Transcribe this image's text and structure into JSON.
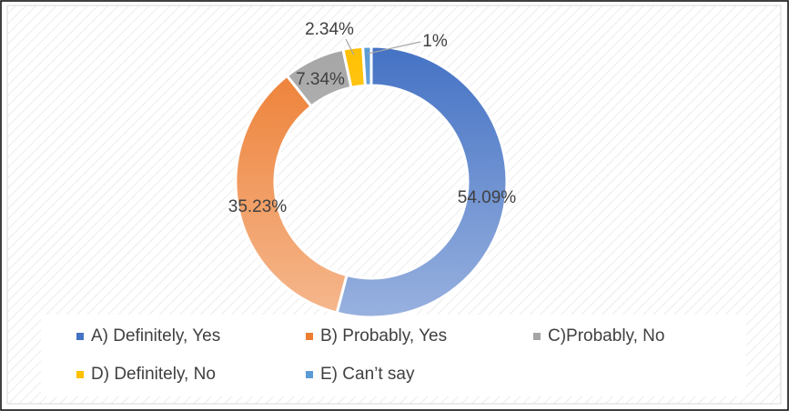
{
  "chart_data": {
    "type": "donut",
    "categories": [
      "A) Definitely, Yes",
      "B) Probably, Yes",
      "C)Probably, No",
      "D) Definitely, No",
      "E) Can’t say"
    ],
    "values": [
      54.09,
      35.23,
      7.34,
      2.34,
      1
    ],
    "value_labels": [
      "54.09%",
      "35.23%",
      "7.34%",
      "2.34%",
      "1%"
    ],
    "colors": [
      "#4472c4",
      "#ed7d31",
      "#a5a5a5",
      "#ffc000",
      "#5b9bd5"
    ],
    "legend": "bottom"
  }
}
